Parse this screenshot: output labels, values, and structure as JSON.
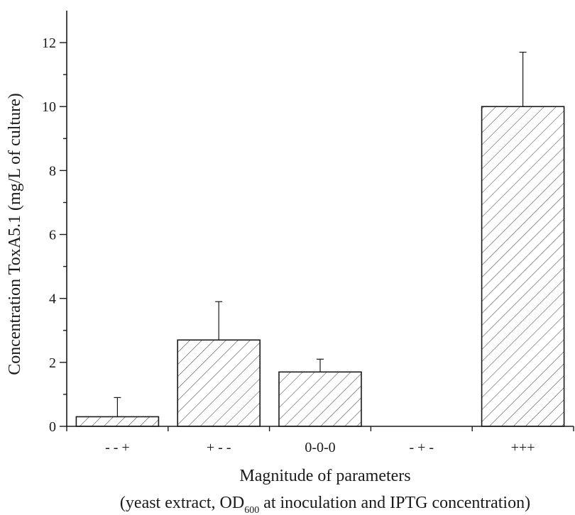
{
  "chart_data": {
    "type": "bar",
    "title": "",
    "categories": [
      "- - +",
      "+ - -",
      "0-0-0",
      "- + -",
      "+++"
    ],
    "values": [
      0.3,
      2.7,
      1.7,
      0,
      10
    ],
    "error_plus": [
      0.6,
      1.2,
      0.4,
      0,
      1.7
    ],
    "ylim": [
      0,
      13
    ],
    "yticks_major": [
      0,
      2,
      4,
      6,
      8,
      10,
      12
    ],
    "yticks_major_labels": [
      "0",
      "2",
      "4",
      "6",
      "8",
      "10",
      "12"
    ],
    "yticks_minor_step": 1,
    "ylabel": "Concentration ToxA5.1 (mg/L of culture)",
    "xlabel_line1": "Magnitude of parameters",
    "xlabel_line2_pre": "(yeast extract, OD",
    "xlabel_line2_sub": "600",
    "xlabel_line2_post": " at inoculation and IPTG concentration)",
    "bar_fill": "hatched",
    "grid": false,
    "legend": "none"
  },
  "colors": {
    "axis": "#1a1a1a",
    "bar_stroke": "#1a1a1a",
    "hatch": "#555555",
    "background": "#ffffff"
  }
}
